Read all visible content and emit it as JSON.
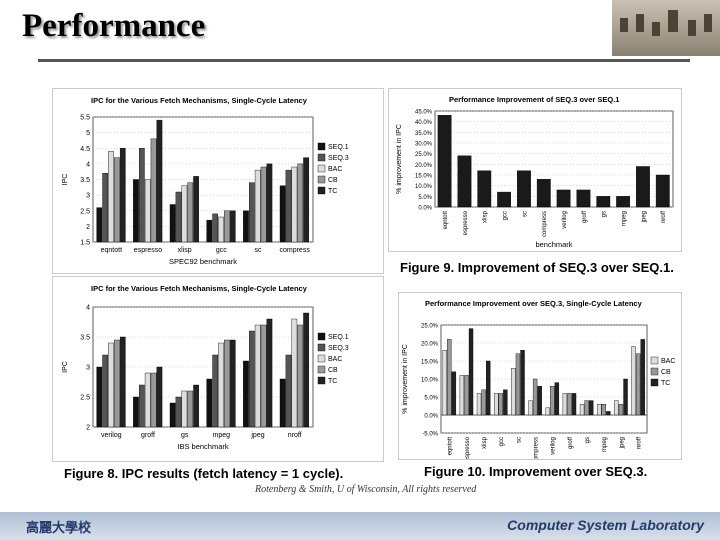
{
  "slide": {
    "title": "Performance",
    "credit": "Rotenberg & Smith, U of Wisconsin, All rights reserved",
    "footer_left": "高麗大學校",
    "footer_right": "Computer System Laboratory"
  },
  "captions": {
    "fig8": "Figure 8. IPC results (fetch latency = 1 cycle).",
    "fig9": "Figure 9. Improvement of SEQ.3 over SEQ.1.",
    "fig10": "Figure 10. Improvement over SEQ.3."
  },
  "chart_data": [
    {
      "id": "spec",
      "type": "bar",
      "title": "IPC for the Various Fetch Mechanisms, Single-Cycle Latency",
      "xlabel": "SPEC92 benchmark",
      "ylabel": "IPC",
      "ylim": [
        1.5,
        5.5
      ],
      "yticks": [
        "1.5",
        "2",
        "2.5",
        "3",
        "3.5",
        "4",
        "4.5",
        "5",
        "5.5"
      ],
      "categories": [
        "eqntott",
        "espresso",
        "xlisp",
        "gcc",
        "sc",
        "compress"
      ],
      "series": [
        {
          "name": "SEQ.1",
          "values": [
            2.6,
            3.5,
            2.7,
            2.2,
            2.5,
            3.3
          ]
        },
        {
          "name": "SEQ.3",
          "values": [
            3.7,
            4.5,
            3.1,
            2.4,
            3.4,
            3.8
          ]
        },
        {
          "name": "BAC",
          "values": [
            4.4,
            3.5,
            3.3,
            2.3,
            3.8,
            3.9
          ]
        },
        {
          "name": "CB",
          "values": [
            4.2,
            4.8,
            3.4,
            2.5,
            3.9,
            4.0
          ]
        },
        {
          "name": "TC",
          "values": [
            4.5,
            5.4,
            3.6,
            2.5,
            4.0,
            4.2
          ]
        }
      ],
      "legend": "right"
    },
    {
      "id": "ibs",
      "type": "bar",
      "title": "IPC for the Various Fetch Mechanisms, Single-Cycle Latency",
      "xlabel": "IBS benchmark",
      "ylabel": "IPC",
      "ylim": [
        2,
        4
      ],
      "yticks": [
        "2",
        "2.5",
        "3",
        "3.5",
        "4"
      ],
      "categories": [
        "verilog",
        "groff",
        "gs",
        "mpeg",
        "jpeg",
        "nroff"
      ],
      "series": [
        {
          "name": "SEQ.1",
          "values": [
            3.0,
            2.5,
            2.4,
            2.8,
            3.1,
            2.8
          ]
        },
        {
          "name": "SEQ.3",
          "values": [
            3.2,
            2.7,
            2.5,
            3.2,
            3.6,
            3.2
          ]
        },
        {
          "name": "BAC",
          "values": [
            3.4,
            2.9,
            2.6,
            3.4,
            3.7,
            3.8
          ]
        },
        {
          "name": "CB",
          "values": [
            3.45,
            2.9,
            2.6,
            3.45,
            3.7,
            3.7
          ]
        },
        {
          "name": "TC",
          "values": [
            3.5,
            3.0,
            2.7,
            3.45,
            3.8,
            3.9
          ]
        }
      ],
      "legend": "right"
    },
    {
      "id": "seq3",
      "type": "bar",
      "title": "Performance Improvement of SEQ.3 over SEQ.1",
      "xlabel": "benchmark",
      "ylabel": "% improvement in IPC",
      "ylim": [
        0,
        45
      ],
      "yticks": [
        "0.0%",
        "5.0%",
        "10.0%",
        "15.0%",
        "20.0%",
        "25.0%",
        "30.0%",
        "35.0%",
        "40.0%",
        "45.0%"
      ],
      "categories": [
        "eqntott",
        "espresso",
        "xlisp",
        "gcc",
        "sc",
        "compress",
        "verilog",
        "groff",
        "gs",
        "mpeg",
        "jpeg",
        "nroff"
      ],
      "series": [
        {
          "name": "SEQ.3",
          "values": [
            43,
            24,
            17,
            7,
            17,
            13,
            8,
            8,
            5,
            5,
            19,
            15
          ]
        }
      ]
    },
    {
      "id": "over_seq3",
      "type": "bar",
      "title": "Performance Improvement over SEQ.3, Single-Cycle Latency",
      "xlabel": "benchmark",
      "ylabel": "% improvement in IPC",
      "ylim": [
        -5,
        25
      ],
      "yticks": [
        "-5.0%",
        "0.0%",
        "5.0%",
        "10.0%",
        "15.0%",
        "20.0%",
        "25.0%"
      ],
      "categories": [
        "eqntott",
        "espresso",
        "xlisp",
        "gcc",
        "sc",
        "compress",
        "verilog",
        "groff",
        "gs",
        "mpeg",
        "jpeg",
        "nroff"
      ],
      "series": [
        {
          "name": "BAC",
          "values": [
            18,
            11,
            6,
            6,
            13,
            4,
            2,
            6,
            3,
            3,
            4,
            19
          ]
        },
        {
          "name": "CB",
          "values": [
            21,
            11,
            7,
            6,
            17,
            10,
            8,
            6,
            4,
            3,
            3,
            17
          ]
        },
        {
          "name": "TC",
          "values": [
            12,
            24,
            15,
            7,
            18,
            8,
            9,
            6,
            4,
            1,
            10,
            21
          ]
        }
      ],
      "legend": "right"
    }
  ]
}
